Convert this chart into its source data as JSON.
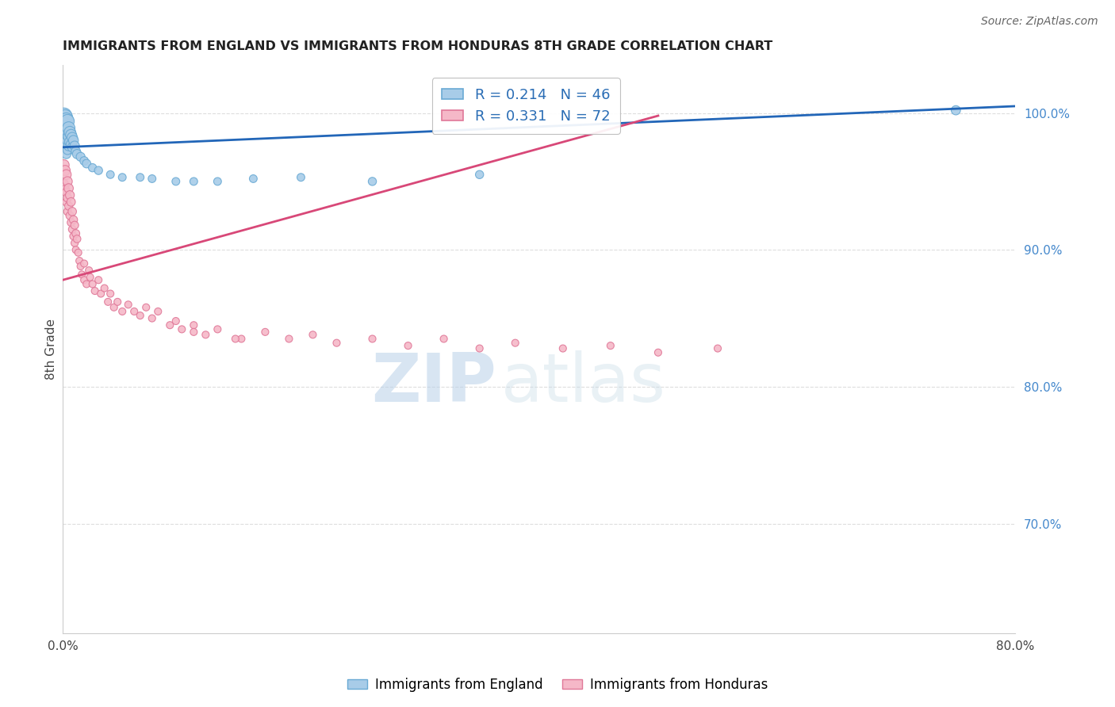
{
  "title": "IMMIGRANTS FROM ENGLAND VS IMMIGRANTS FROM HONDURAS 8TH GRADE CORRELATION CHART",
  "source": "Source: ZipAtlas.com",
  "ylabel_left": "8th Grade",
  "watermark_zip": "ZIP",
  "watermark_atlas": "atlas",
  "x_min": 0.0,
  "x_max": 0.8,
  "y_min": 0.62,
  "y_max": 1.035,
  "y_ticks": [
    0.7,
    0.8,
    0.9,
    1.0
  ],
  "y_tick_labels": [
    "70.0%",
    "80.0%",
    "90.0%",
    "100.0%"
  ],
  "x_ticks": [
    0.0,
    0.1,
    0.2,
    0.3,
    0.4,
    0.5,
    0.6,
    0.7,
    0.8
  ],
  "x_tick_labels": [
    "0.0%",
    "",
    "",
    "",
    "",
    "",
    "",
    "",
    "80.0%"
  ],
  "england_color": "#a8cce8",
  "england_edge_color": "#6aaad4",
  "honduras_color": "#f5b8c8",
  "honduras_edge_color": "#e07898",
  "england_line_color": "#2266b8",
  "honduras_line_color": "#d84878",
  "england_R": 0.214,
  "england_N": 46,
  "honduras_R": 0.331,
  "honduras_N": 72,
  "england_line_x0": 0.0,
  "england_line_y0": 0.975,
  "england_line_x1": 0.8,
  "england_line_y1": 1.005,
  "honduras_line_x0": 0.0,
  "honduras_line_y0": 0.878,
  "honduras_line_x1": 0.5,
  "honduras_line_y1": 0.998,
  "england_dots_x": [
    0.001,
    0.001,
    0.001,
    0.002,
    0.002,
    0.002,
    0.002,
    0.003,
    0.003,
    0.003,
    0.003,
    0.003,
    0.004,
    0.004,
    0.004,
    0.004,
    0.005,
    0.005,
    0.005,
    0.006,
    0.006,
    0.007,
    0.007,
    0.008,
    0.008,
    0.009,
    0.01,
    0.011,
    0.012,
    0.015,
    0.018,
    0.02,
    0.025,
    0.03,
    0.04,
    0.05,
    0.065,
    0.075,
    0.095,
    0.11,
    0.13,
    0.16,
    0.2,
    0.26,
    0.35,
    0.75
  ],
  "england_dots_y": [
    0.998,
    0.992,
    0.985,
    0.997,
    0.99,
    0.983,
    0.978,
    0.995,
    0.988,
    0.982,
    0.976,
    0.97,
    0.994,
    0.987,
    0.98,
    0.973,
    0.989,
    0.983,
    0.976,
    0.986,
    0.979,
    0.984,
    0.977,
    0.982,
    0.975,
    0.98,
    0.976,
    0.972,
    0.97,
    0.968,
    0.965,
    0.963,
    0.96,
    0.958,
    0.955,
    0.953,
    0.953,
    0.952,
    0.95,
    0.95,
    0.95,
    0.952,
    0.953,
    0.95,
    0.955,
    1.002
  ],
  "england_dots_size": [
    200,
    150,
    120,
    180,
    140,
    110,
    90,
    160,
    130,
    100,
    80,
    70,
    150,
    120,
    90,
    70,
    130,
    100,
    80,
    110,
    90,
    100,
    80,
    90,
    75,
    80,
    75,
    70,
    70,
    65,
    60,
    60,
    55,
    55,
    50,
    50,
    50,
    50,
    50,
    50,
    50,
    50,
    50,
    55,
    55,
    70
  ],
  "honduras_dots_x": [
    0.001,
    0.001,
    0.002,
    0.002,
    0.003,
    0.003,
    0.003,
    0.004,
    0.004,
    0.004,
    0.005,
    0.005,
    0.006,
    0.006,
    0.007,
    0.007,
    0.008,
    0.008,
    0.009,
    0.009,
    0.01,
    0.01,
    0.011,
    0.011,
    0.012,
    0.013,
    0.014,
    0.015,
    0.016,
    0.018,
    0.018,
    0.02,
    0.022,
    0.023,
    0.025,
    0.027,
    0.03,
    0.032,
    0.035,
    0.038,
    0.04,
    0.043,
    0.046,
    0.05,
    0.055,
    0.06,
    0.065,
    0.07,
    0.075,
    0.08,
    0.09,
    0.095,
    0.1,
    0.11,
    0.12,
    0.13,
    0.15,
    0.17,
    0.19,
    0.21,
    0.23,
    0.26,
    0.29,
    0.32,
    0.35,
    0.38,
    0.42,
    0.46,
    0.5,
    0.55,
    0.11,
    0.145
  ],
  "honduras_dots_y": [
    0.962,
    0.948,
    0.958,
    0.944,
    0.955,
    0.942,
    0.935,
    0.95,
    0.938,
    0.928,
    0.945,
    0.932,
    0.94,
    0.925,
    0.935,
    0.92,
    0.928,
    0.915,
    0.922,
    0.91,
    0.918,
    0.905,
    0.912,
    0.9,
    0.908,
    0.898,
    0.892,
    0.888,
    0.882,
    0.878,
    0.89,
    0.875,
    0.885,
    0.88,
    0.875,
    0.87,
    0.878,
    0.868,
    0.872,
    0.862,
    0.868,
    0.858,
    0.862,
    0.855,
    0.86,
    0.855,
    0.852,
    0.858,
    0.85,
    0.855,
    0.845,
    0.848,
    0.842,
    0.845,
    0.838,
    0.842,
    0.835,
    0.84,
    0.835,
    0.838,
    0.832,
    0.835,
    0.83,
    0.835,
    0.828,
    0.832,
    0.828,
    0.83,
    0.825,
    0.828,
    0.84,
    0.835
  ],
  "honduras_dots_size": [
    90,
    70,
    85,
    65,
    80,
    62,
    55,
    75,
    58,
    50,
    70,
    55,
    65,
    52,
    60,
    50,
    58,
    48,
    55,
    46,
    52,
    44,
    50,
    42,
    48,
    42,
    42,
    42,
    42,
    42,
    42,
    42,
    42,
    42,
    42,
    42,
    42,
    42,
    42,
    42,
    42,
    42,
    42,
    42,
    42,
    42,
    42,
    42,
    42,
    42,
    42,
    42,
    42,
    42,
    42,
    42,
    42,
    42,
    42,
    42,
    42,
    42,
    42,
    42,
    42,
    42,
    42,
    42,
    42,
    42,
    42,
    42
  ],
  "grid_color": "#dddddd",
  "tick_color_x": "#444444",
  "tick_color_y_right": "#4488cc",
  "spine_color": "#cccccc"
}
